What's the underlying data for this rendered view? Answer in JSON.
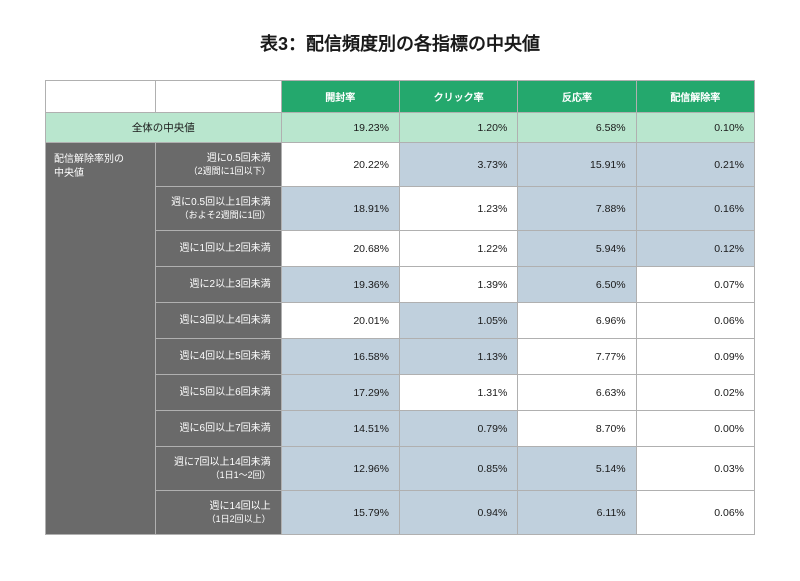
{
  "title": "表3：配信頻度別の各指標の中央値",
  "headers": {
    "open": "開封率",
    "click": "クリック率",
    "response": "反応率",
    "unsub": "配信解除率"
  },
  "overall": {
    "label": "全体の中央値",
    "open": "19.23%",
    "click": "1.20%",
    "response": "6.58%",
    "unsub": "0.10%"
  },
  "side_header": "配信解除率別の\n中央値",
  "rows": [
    {
      "label": "週に0.5回未満",
      "sublabel": "（2週間に1回以下）",
      "open": {
        "v": "20.22%",
        "hl": false
      },
      "click": {
        "v": "3.73%",
        "hl": true
      },
      "response": {
        "v": "15.91%",
        "hl": true
      },
      "unsub": {
        "v": "0.21%",
        "hl": true
      }
    },
    {
      "label": "週に0.5回以上1回未満",
      "sublabel": "（およそ2週間に1回）",
      "open": {
        "v": "18.91%",
        "hl": true
      },
      "click": {
        "v": "1.23%",
        "hl": false
      },
      "response": {
        "v": "7.88%",
        "hl": true
      },
      "unsub": {
        "v": "0.16%",
        "hl": true
      }
    },
    {
      "label": "週に1回以上2回未満",
      "sublabel": "",
      "open": {
        "v": "20.68%",
        "hl": false
      },
      "click": {
        "v": "1.22%",
        "hl": false
      },
      "response": {
        "v": "5.94%",
        "hl": true
      },
      "unsub": {
        "v": "0.12%",
        "hl": true
      }
    },
    {
      "label": "週に2以上3回未満",
      "sublabel": "",
      "open": {
        "v": "19.36%",
        "hl": true
      },
      "click": {
        "v": "1.39%",
        "hl": false
      },
      "response": {
        "v": "6.50%",
        "hl": true
      },
      "unsub": {
        "v": "0.07%",
        "hl": false
      }
    },
    {
      "label": "週に3回以上4回未満",
      "sublabel": "",
      "open": {
        "v": "20.01%",
        "hl": false
      },
      "click": {
        "v": "1.05%",
        "hl": true
      },
      "response": {
        "v": "6.96%",
        "hl": false
      },
      "unsub": {
        "v": "0.06%",
        "hl": false
      }
    },
    {
      "label": "週に4回以上5回未満",
      "sublabel": "",
      "open": {
        "v": "16.58%",
        "hl": true
      },
      "click": {
        "v": "1.13%",
        "hl": true
      },
      "response": {
        "v": "7.77%",
        "hl": false
      },
      "unsub": {
        "v": "0.09%",
        "hl": false
      }
    },
    {
      "label": "週に5回以上6回未満",
      "sublabel": "",
      "open": {
        "v": "17.29%",
        "hl": true
      },
      "click": {
        "v": "1.31%",
        "hl": false
      },
      "response": {
        "v": "6.63%",
        "hl": false
      },
      "unsub": {
        "v": "0.02%",
        "hl": false
      }
    },
    {
      "label": "週に6回以上7回未満",
      "sublabel": "",
      "open": {
        "v": "14.51%",
        "hl": true
      },
      "click": {
        "v": "0.79%",
        "hl": true
      },
      "response": {
        "v": "8.70%",
        "hl": false
      },
      "unsub": {
        "v": "0.00%",
        "hl": false
      }
    },
    {
      "label": "週に7回以上14回未満",
      "sublabel": "（1日1〜2回）",
      "open": {
        "v": "12.96%",
        "hl": true
      },
      "click": {
        "v": "0.85%",
        "hl": true
      },
      "response": {
        "v": "5.14%",
        "hl": true
      },
      "unsub": {
        "v": "0.03%",
        "hl": false
      }
    },
    {
      "label": "週に14回以上",
      "sublabel": "（1日2回以上）",
      "open": {
        "v": "15.79%",
        "hl": true
      },
      "click": {
        "v": "0.94%",
        "hl": true
      },
      "response": {
        "v": "6.11%",
        "hl": true
      },
      "unsub": {
        "v": "0.06%",
        "hl": false
      }
    }
  ],
  "colors": {
    "header_bg": "#24a86d",
    "overall_bg": "#b9e6ce",
    "side_bg": "#6a6a6a",
    "highlight_bg": "#c0d0dd",
    "border": "#b0b0b0"
  }
}
